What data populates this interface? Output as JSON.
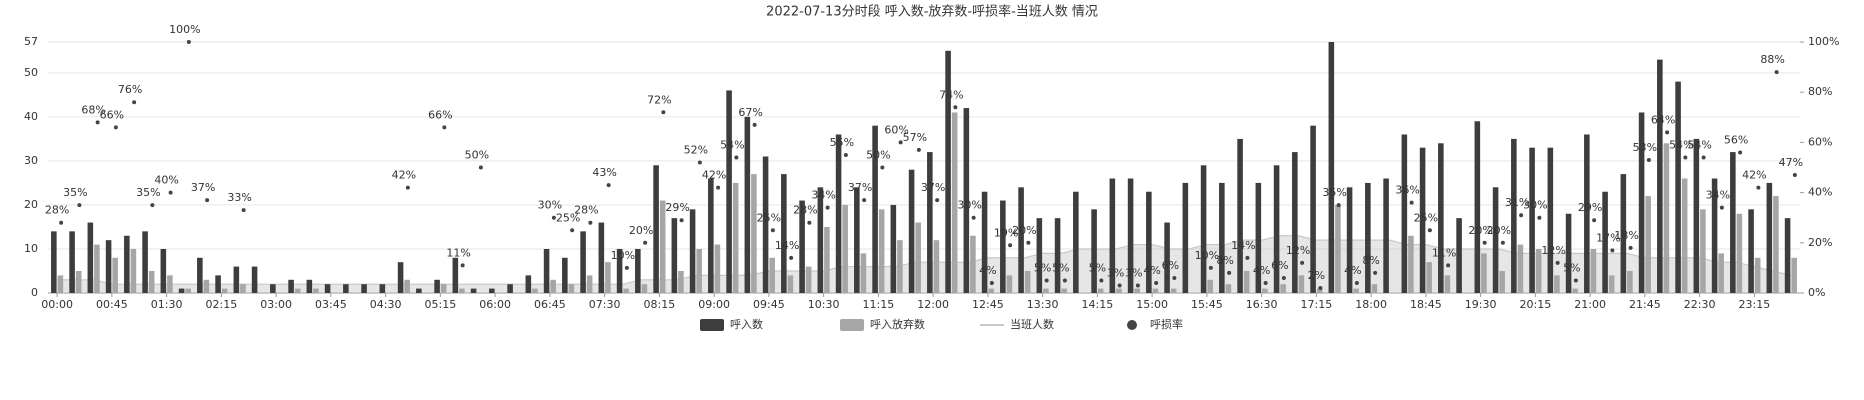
{
  "chart_data": {
    "type": "bar",
    "title": "2022-07-13分时段 呼入数-放弃数-呼损率-当班人数 情况",
    "categories": [
      "00:00",
      null,
      null,
      "00:45",
      null,
      null,
      "01:30",
      null,
      null,
      "02:15",
      null,
      null,
      "03:00",
      null,
      null,
      "03:45",
      null,
      null,
      "04:30",
      null,
      null,
      "05:15",
      null,
      null,
      "06:00",
      null,
      null,
      "06:45",
      null,
      null,
      "07:30",
      null,
      null,
      "08:15",
      null,
      null,
      "09:00",
      null,
      null,
      "09:45",
      null,
      null,
      "10:30",
      null,
      null,
      "11:15",
      null,
      null,
      "12:00",
      null,
      null,
      "12:45",
      null,
      null,
      "13:30",
      null,
      null,
      "14:15",
      null,
      null,
      "15:00",
      null,
      null,
      "15:45",
      null,
      null,
      "16:30",
      null,
      null,
      "17:15",
      null,
      null,
      "18:00",
      null,
      null,
      "18:45",
      null,
      null,
      "19:30",
      null,
      null,
      "20:15",
      null,
      null,
      "21:00",
      null,
      null,
      "21:45",
      null,
      null,
      "22:30",
      null,
      null,
      "23:15",
      null,
      null
    ],
    "ylim": [
      0,
      57
    ],
    "yticks": [
      0,
      10,
      20,
      30,
      40,
      50,
      57
    ],
    "y2lim": [
      0,
      100
    ],
    "y2ticks": [
      {
        "value": 0,
        "label": "0%"
      },
      {
        "value": 20,
        "label": "20%"
      },
      {
        "value": 40,
        "label": "40%"
      },
      {
        "value": 60,
        "label": "60%"
      },
      {
        "value": 80,
        "label": "80%"
      },
      {
        "value": 100,
        "label": "100%"
      }
    ],
    "grid": true,
    "legend": "bottom",
    "series": [
      {
        "name": "呼入数",
        "type": "bar",
        "color": "#3d3d3d",
        "values": [
          14,
          14,
          16,
          12,
          13,
          14,
          10,
          1,
          8,
          4,
          6,
          6,
          2,
          3,
          3,
          2,
          2,
          2,
          2,
          7,
          1,
          3,
          8,
          1,
          1,
          2,
          4,
          10,
          8,
          14,
          16,
          10,
          10,
          29,
          17,
          19,
          26,
          46,
          40,
          31,
          27,
          21,
          24,
          36,
          24,
          38,
          20,
          28,
          32,
          55,
          42,
          23,
          21,
          24,
          17,
          17,
          23,
          19,
          26,
          26,
          23,
          16,
          25,
          29,
          25,
          35,
          25,
          29,
          32,
          38,
          57,
          24,
          25,
          26,
          36,
          33,
          34,
          17,
          39,
          24,
          35,
          33,
          33,
          18,
          36,
          23,
          27,
          41,
          53,
          48,
          35,
          26,
          32,
          19,
          25,
          17
        ]
      },
      {
        "name": "呼入放弃数",
        "type": "bar",
        "color": "#a6a6a6",
        "values": [
          4,
          5,
          11,
          8,
          10,
          5,
          4,
          1,
          3,
          1,
          2,
          0,
          0,
          1,
          1,
          0,
          0,
          0,
          0,
          3,
          0,
          2,
          1,
          0,
          0,
          0,
          1,
          3,
          2,
          4,
          7,
          1,
          2,
          21,
          5,
          10,
          11,
          25,
          27,
          8,
          4,
          6,
          15,
          20,
          9,
          19,
          12,
          16,
          12,
          41,
          13,
          1,
          4,
          5,
          1,
          1,
          0,
          1,
          1,
          1,
          1,
          1,
          0,
          3,
          2,
          5,
          1,
          2,
          4,
          1,
          20,
          1,
          2,
          0,
          13,
          7,
          4,
          0,
          9,
          5,
          11,
          10,
          4,
          1,
          10,
          4,
          5,
          22,
          34,
          26,
          19,
          9,
          18,
          8,
          22,
          8
        ]
      },
      {
        "name": "当班人数",
        "type": "line",
        "color": "#c8c8c8",
        "values": [
          3,
          3,
          3,
          2,
          2,
          2,
          2,
          2,
          2,
          2,
          2,
          2,
          2,
          2,
          2,
          2,
          2,
          2,
          2,
          2,
          2,
          2,
          2,
          2,
          2,
          2,
          2,
          2,
          2,
          2,
          2,
          2,
          3,
          3,
          3,
          4,
          4,
          4,
          4,
          5,
          5,
          5,
          5,
          6,
          6,
          6,
          6,
          7,
          7,
          7,
          7,
          8,
          8,
          8,
          9,
          9,
          10,
          10,
          10,
          11,
          11,
          10,
          10,
          11,
          11,
          12,
          12,
          13,
          13,
          12,
          12,
          12,
          12,
          12,
          11,
          11,
          10,
          10,
          10,
          10,
          9,
          9,
          9,
          9,
          9,
          9,
          9,
          8,
          8,
          8,
          8,
          7,
          7,
          6,
          5,
          4
        ]
      },
      {
        "name": "呼损率",
        "type": "scatter",
        "axis": "y2",
        "color": "#444444",
        "values": [
          28,
          35,
          68,
          66,
          76,
          35,
          40,
          100,
          37,
          null,
          33,
          null,
          null,
          null,
          null,
          null,
          null,
          null,
          null,
          42,
          null,
          66,
          11,
          50,
          null,
          null,
          null,
          30,
          25,
          28,
          43,
          10,
          20,
          72,
          29,
          52,
          42,
          54,
          67,
          25,
          14,
          28,
          34,
          55,
          37,
          50,
          60,
          57,
          37,
          74,
          30,
          4,
          19,
          20,
          5,
          5,
          null,
          5,
          3,
          3,
          4,
          6,
          null,
          10,
          8,
          14,
          4,
          6,
          12,
          2,
          35,
          4,
          8,
          null,
          36,
          25,
          11,
          null,
          20,
          20,
          31,
          30,
          12,
          5,
          29,
          17,
          18,
          53,
          64,
          54,
          54,
          34,
          56,
          42,
          88,
          47
        ],
        "value_labels": [
          "28%",
          "35%",
          "68%",
          "66%",
          "76%",
          "35%",
          "40%",
          "100%",
          "37%",
          null,
          "33%",
          null,
          null,
          null,
          null,
          null,
          null,
          null,
          null,
          "42%",
          null,
          "66%",
          "11%",
          "50%",
          null,
          null,
          null,
          "30%",
          "25%",
          "28%",
          "43%",
          "10%",
          "20%",
          "72%",
          "29%",
          "52%",
          "42%",
          "54%",
          "67%",
          "25%",
          "14%",
          "28%",
          "34%",
          "55%",
          "37%",
          "50%",
          "60%",
          "57%",
          "37%",
          "74%",
          "30%",
          "4%",
          "19%",
          "20%",
          "5%",
          "5%",
          null,
          "5%",
          "3%",
          "3%",
          "4%",
          "6%",
          null,
          "10%",
          "8%",
          "14%",
          "4%",
          "6%",
          "12%",
          "2%",
          "35%",
          "4%",
          "8%",
          null,
          "36%",
          "25%",
          "11%",
          null,
          "20%",
          "20%",
          "31%",
          "30%",
          "12%",
          "5%",
          "29%",
          "17%",
          "18%",
          "53%",
          "64%",
          "54%",
          "54%",
          "34%",
          "56%",
          "42%",
          "88%",
          "47%"
        ]
      }
    ]
  }
}
